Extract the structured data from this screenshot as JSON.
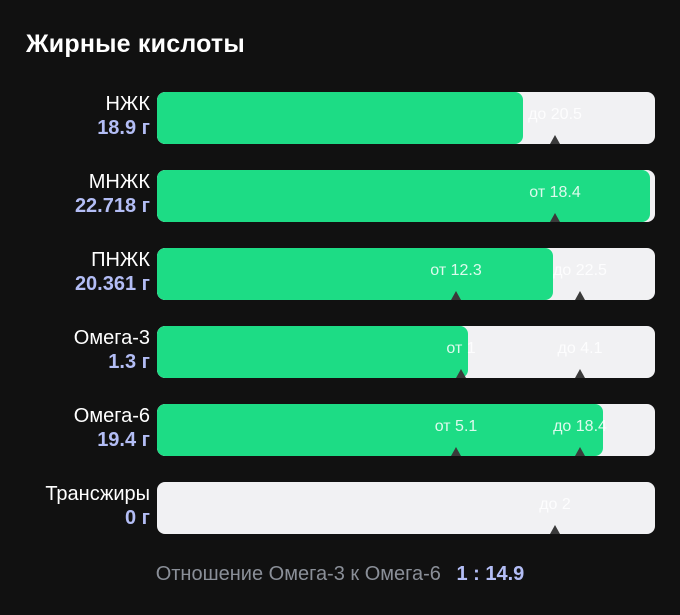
{
  "title": "Жирные кислоты",
  "rows": [
    {
      "name": "НЖК",
      "amount": "18.9 г",
      "fill_fraction": 0.735,
      "markers": [
        {
          "text": "до 20.5",
          "pos": 0.8
        }
      ]
    },
    {
      "name": "МНЖК",
      "amount": "22.718 г",
      "fill_fraction": 0.99,
      "markers": [
        {
          "text": "от 18.4",
          "pos": 0.8
        }
      ]
    },
    {
      "name": "ПНЖК",
      "amount": "20.361 г",
      "fill_fraction": 0.795,
      "markers": [
        {
          "text": "от 12.3",
          "pos": 0.6
        },
        {
          "text": "до 22.5",
          "pos": 0.85
        }
      ]
    },
    {
      "name": "Омега-3",
      "amount": "1.3 г",
      "fill_fraction": 0.625,
      "markers": [
        {
          "text": "от 1",
          "pos": 0.61
        },
        {
          "text": "до 4.1",
          "pos": 0.85
        }
      ]
    },
    {
      "name": "Омега-6",
      "amount": "19.4 г",
      "fill_fraction": 0.895,
      "markers": [
        {
          "text": "от 5.1",
          "pos": 0.6
        },
        {
          "text": "до 18.4",
          "pos": 0.85
        }
      ]
    },
    {
      "name": "Трансжиры",
      "amount": "0 г",
      "fill_fraction": 0,
      "markers": [
        {
          "text": "до 2",
          "pos": 0.8
        }
      ]
    }
  ],
  "footer": {
    "ratio_label": "Отношение Омега-3 к Омега-6",
    "ratio_value": "1 : 14.9"
  },
  "colors": {
    "background": "#111111",
    "fill": "#1ddc85",
    "track": "#f1f1f3",
    "accent": "#b3bdf5",
    "muted": "#8a8f98"
  }
}
